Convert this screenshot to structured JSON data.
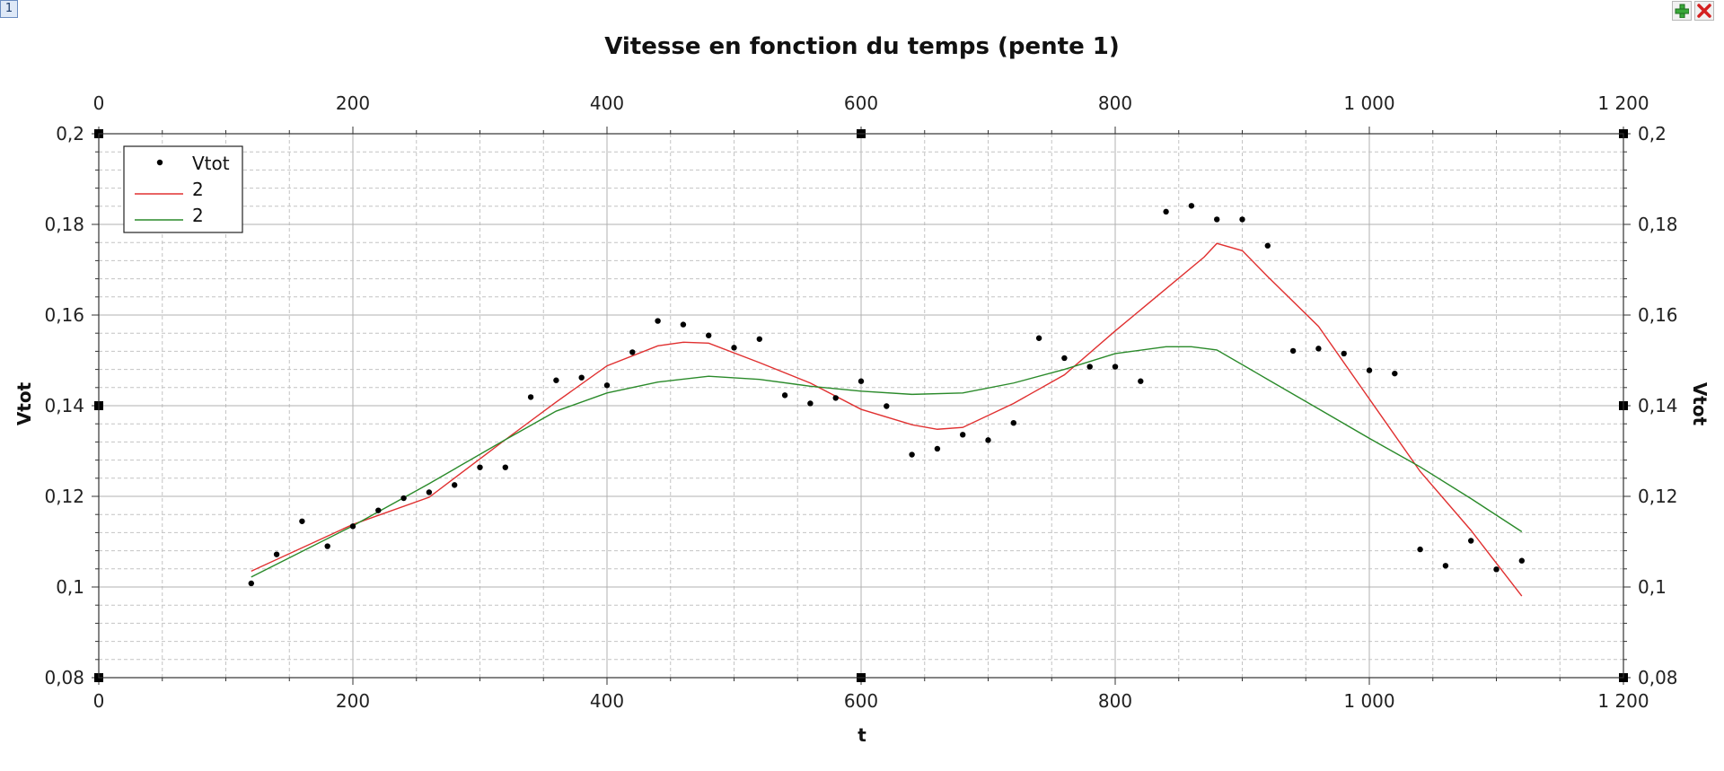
{
  "window": {
    "tab_number": "1",
    "toolbar": {
      "add_icon": "plus-icon",
      "close_icon": "close-icon"
    }
  },
  "chart_data": {
    "type": "scatter",
    "title": "Vitesse en fonction du temps (pente 1)",
    "xlabel": "t",
    "ylabel": "Vtot",
    "y2label": "Vtot",
    "xlim": [
      0,
      1200
    ],
    "ylim": [
      0.08,
      0.2
    ],
    "x_ticks": [
      0,
      200,
      400,
      600,
      800,
      1000,
      1200
    ],
    "x_tick_labels": [
      "0",
      "200",
      "400",
      "600",
      "800",
      "1 000",
      "1 200"
    ],
    "y_ticks": [
      0.08,
      0.1,
      0.12,
      0.14,
      0.16,
      0.18,
      0.2
    ],
    "y_tick_labels": [
      "0,08",
      "0,1",
      "0,12",
      "0,14",
      "0,16",
      "0,18",
      "0,2"
    ],
    "grid": true,
    "legend_position": "top-left",
    "legend": [
      {
        "label": "Vtot",
        "kind": "points",
        "color": "#000000"
      },
      {
        "label": "2",
        "kind": "line",
        "color": "#e03030"
      },
      {
        "label": "2",
        "kind": "line",
        "color": "#2a8a2a"
      }
    ],
    "series": [
      {
        "name": "Vtot",
        "kind": "points",
        "color": "#000000",
        "x": [
          120,
          140,
          160,
          180,
          200,
          220,
          240,
          260,
          280,
          300,
          320,
          340,
          360,
          380,
          400,
          420,
          440,
          460,
          480,
          500,
          520,
          540,
          560,
          580,
          600,
          620,
          640,
          660,
          680,
          700,
          720,
          740,
          760,
          780,
          800,
          820,
          840,
          860,
          880,
          900,
          920,
          940,
          960,
          980,
          1000,
          1020,
          1040,
          1060,
          1080,
          1100,
          1120
        ],
        "y": [
          0.1008,
          0.1072,
          0.1145,
          0.109,
          0.1134,
          0.1169,
          0.1196,
          0.1209,
          0.1225,
          0.1264,
          0.1264,
          0.1419,
          0.1456,
          0.1462,
          0.1445,
          0.1518,
          0.1587,
          0.1579,
          0.1555,
          0.1528,
          0.1547,
          0.1423,
          0.1405,
          0.1417,
          0.1454,
          0.1399,
          0.1292,
          0.1305,
          0.1336,
          0.1324,
          0.1362,
          0.1549,
          0.1505,
          0.1486,
          0.1486,
          0.1454,
          0.1828,
          0.1841,
          0.1811,
          0.1811,
          0.1753,
          0.1521,
          0.1526,
          0.1515,
          0.1478,
          0.1471,
          0.1083,
          0.1047,
          0.1102,
          0.1039,
          0.1058
        ]
      },
      {
        "name": "2",
        "kind": "line",
        "color": "#e03030",
        "x": [
          120,
          200,
          260,
          320,
          360,
          400,
          440,
          460,
          480,
          520,
          560,
          600,
          640,
          660,
          680,
          720,
          760,
          800,
          840,
          870,
          880,
          900,
          920,
          960,
          1000,
          1040,
          1080,
          1120
        ],
        "y": [
          0.1035,
          0.1138,
          0.1198,
          0.1325,
          0.1408,
          0.1488,
          0.1532,
          0.154,
          0.1538,
          0.1495,
          0.145,
          0.1392,
          0.1358,
          0.1348,
          0.1352,
          0.1405,
          0.1468,
          0.1565,
          0.1658,
          0.1728,
          0.1758,
          0.1742,
          0.1685,
          0.1575,
          0.1415,
          0.1255,
          0.1125,
          0.098
        ]
      },
      {
        "name": "2",
        "kind": "line",
        "color": "#2a8a2a",
        "x": [
          120,
          200,
          260,
          320,
          360,
          400,
          440,
          480,
          520,
          560,
          600,
          640,
          680,
          720,
          760,
          800,
          840,
          860,
          880,
          920,
          960,
          1000,
          1040,
          1080,
          1120
        ],
        "y": [
          0.1022,
          0.1135,
          0.1228,
          0.1325,
          0.1388,
          0.1428,
          0.1452,
          0.1465,
          0.1458,
          0.1443,
          0.1432,
          0.1425,
          0.1428,
          0.145,
          0.148,
          0.1515,
          0.153,
          0.153,
          0.1523,
          0.1458,
          0.1393,
          0.1328,
          0.1265,
          0.1195,
          0.1122
        ]
      }
    ]
  }
}
